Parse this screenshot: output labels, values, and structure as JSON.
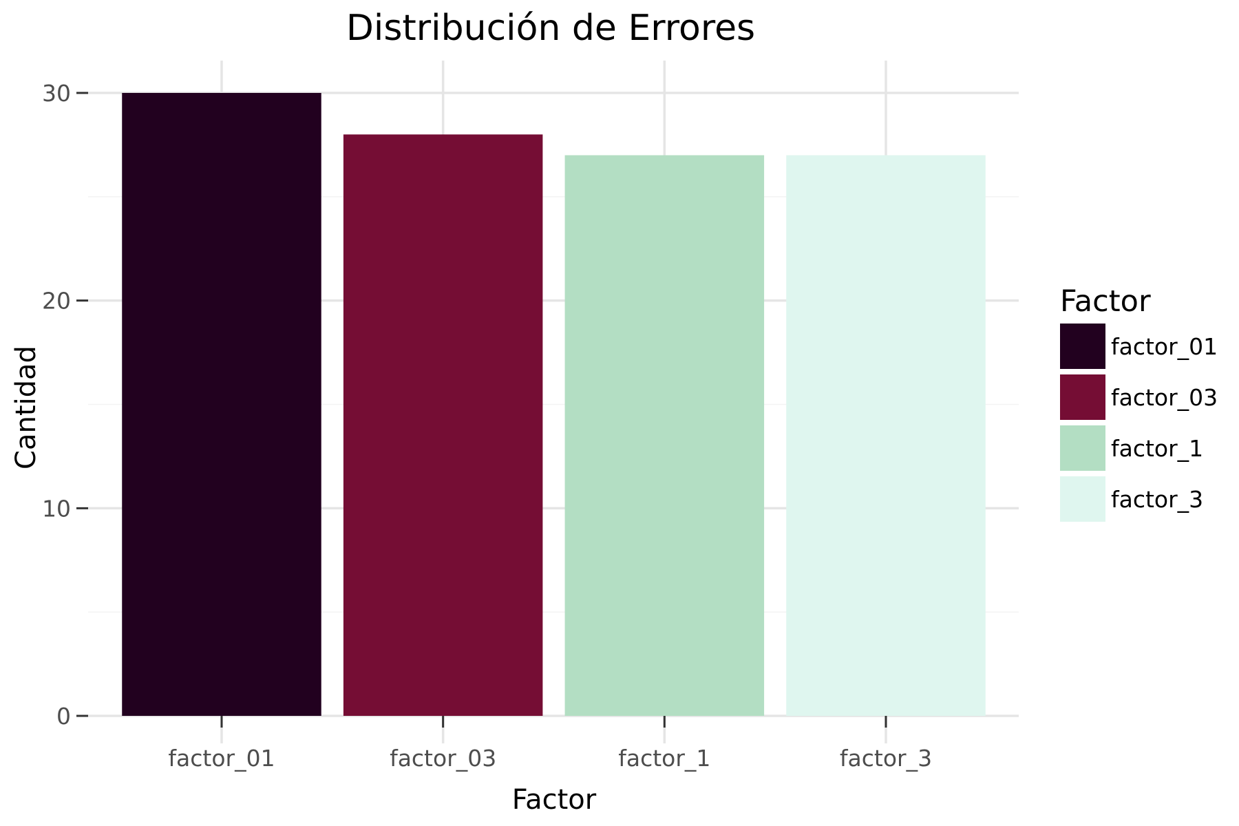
{
  "chart_data": {
    "type": "bar",
    "title": "Distribución de Errores",
    "xlabel": "Factor",
    "ylabel": "Cantidad",
    "categories": [
      "factor_01",
      "factor_03",
      "factor_1",
      "factor_3"
    ],
    "values": [
      30,
      28,
      27,
      27
    ],
    "colors": [
      "#22011f",
      "#750d34",
      "#b3dec3",
      "#dff6ef"
    ],
    "ylim": [
      0,
      30
    ],
    "yticks": [
      0,
      10,
      20,
      30
    ],
    "grid": true,
    "legend": {
      "title": "Factor",
      "placement": "right",
      "entries": [
        "factor_01",
        "factor_03",
        "factor_1",
        "factor_3"
      ]
    }
  }
}
